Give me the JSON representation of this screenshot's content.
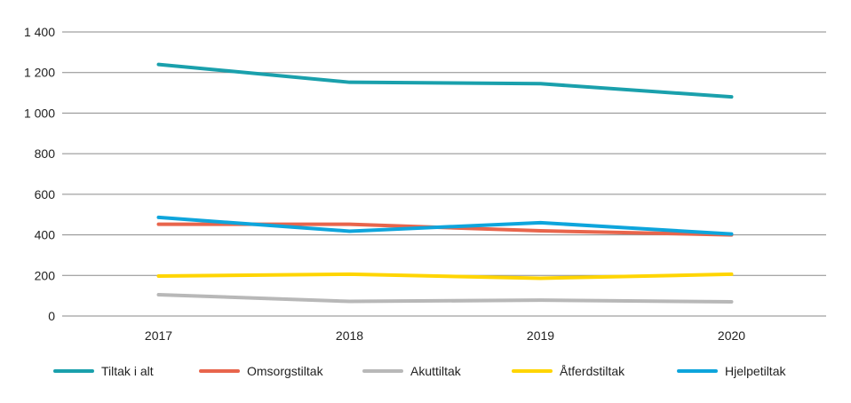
{
  "chart_data": {
    "type": "line",
    "categories": [
      "2017",
      "2018",
      "2019",
      "2020"
    ],
    "ylim": [
      0,
      1400
    ],
    "yticks": [
      0,
      200,
      400,
      600,
      800,
      1000,
      1200,
      1400
    ],
    "ytick_labels": [
      "0",
      "200",
      "400",
      "600",
      "800",
      "1 000",
      "1 200",
      "1 400"
    ],
    "grid": "horizontal",
    "legend_position": "bottom",
    "series": [
      {
        "name": "Tiltak i alt",
        "color": "#1aa0ac",
        "values": [
          1240,
          1152,
          1145,
          1080
        ]
      },
      {
        "name": "Omsorgstiltak",
        "color": "#e8654c",
        "values": [
          452,
          452,
          420,
          400
        ]
      },
      {
        "name": "Akuttiltak",
        "color": "#b8b8b8",
        "values": [
          105,
          72,
          78,
          70
        ]
      },
      {
        "name": "Åtferdstiltak",
        "color": "#ffd500",
        "values": [
          197,
          206,
          186,
          206
        ]
      },
      {
        "name": "Hjelpetiltak",
        "color": "#0ea5dc",
        "values": [
          486,
          418,
          460,
          404
        ]
      }
    ]
  }
}
